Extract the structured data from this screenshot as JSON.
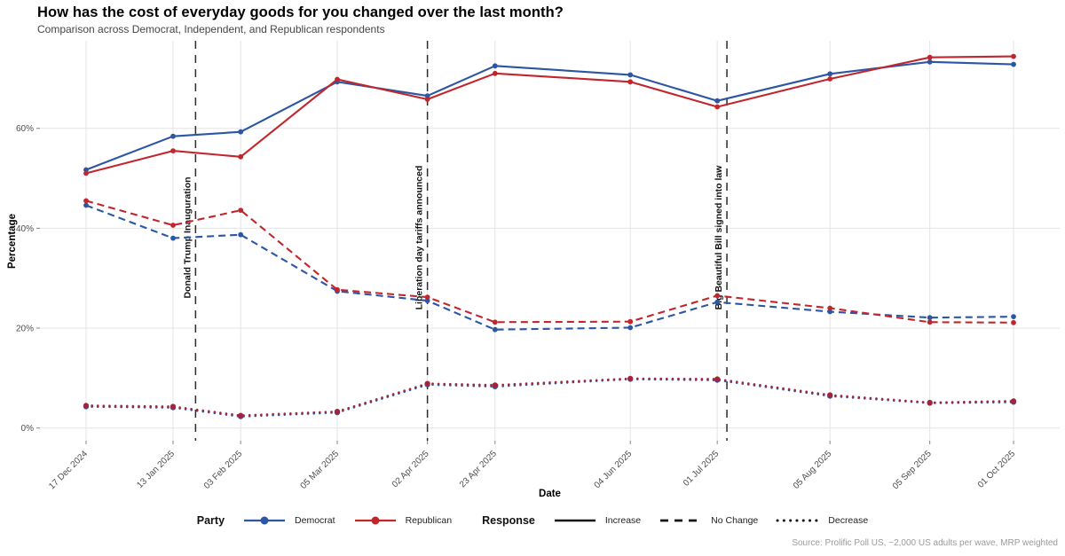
{
  "chart_data": {
    "type": "line",
    "title": "How has the cost of everyday goods for you changed over the last month?",
    "subtitle": "Comparison across Democrat, Independent, and Republican respondents",
    "xlabel": "Date",
    "ylabel": "Percentage",
    "x": [
      "17 Dec 2024",
      "13 Jan 2025",
      "03 Feb 2025",
      "05 Mar 2025",
      "02 Apr 2025",
      "23 Apr 2025",
      "04 Jun 2025",
      "01 Jul 2025",
      "05 Aug 2025",
      "05 Sep 2025",
      "01 Oct 2025"
    ],
    "x_days": [
      0,
      27,
      48,
      78,
      106,
      127,
      169,
      196,
      231,
      262,
      288
    ],
    "x_day_span": 288,
    "y_ticks": [
      0,
      20,
      40,
      60
    ],
    "y_tick_suffix": "%",
    "ylim": [
      0,
      78
    ],
    "grid": true,
    "legend_position": "bottom",
    "series": [
      {
        "name": "Democrat Increase",
        "party": "Democrat",
        "response": "Increase",
        "style": "solid",
        "color_key": "democrat",
        "values": [
          51.7,
          58.4,
          59.3,
          69.3,
          66.5,
          72.5,
          70.7,
          65.5,
          70.9,
          73.3,
          72.8
        ]
      },
      {
        "name": "Republican Increase",
        "party": "Republican",
        "response": "Increase",
        "style": "solid",
        "color_key": "republican",
        "values": [
          51.0,
          55.5,
          54.3,
          69.8,
          65.8,
          71.0,
          69.3,
          64.3,
          69.9,
          74.2,
          74.4
        ]
      },
      {
        "name": "Democrat No Change",
        "party": "Democrat",
        "response": "No Change",
        "style": "dashed",
        "color_key": "democrat",
        "values": [
          44.6,
          38.0,
          38.7,
          27.4,
          25.5,
          19.7,
          20.1,
          25.2,
          23.3,
          22.1,
          22.3
        ]
      },
      {
        "name": "Republican No Change",
        "party": "Republican",
        "response": "No Change",
        "style": "dashed",
        "color_key": "republican",
        "values": [
          45.5,
          40.6,
          43.6,
          27.7,
          26.2,
          21.2,
          21.3,
          26.5,
          24.0,
          21.2,
          21.1
        ]
      },
      {
        "name": "Democrat Decrease",
        "party": "Democrat",
        "response": "Decrease",
        "style": "dotted",
        "color_key": "democrat",
        "values": [
          4.3,
          4.1,
          2.3,
          3.1,
          8.7,
          8.3,
          9.8,
          9.6,
          6.4,
          5.0,
          5.2
        ]
      },
      {
        "name": "Republican Decrease",
        "party": "Republican",
        "response": "Decrease",
        "style": "dotted",
        "color_key": "decrease_red",
        "values": [
          4.5,
          4.3,
          2.5,
          3.3,
          8.9,
          8.6,
          9.9,
          9.8,
          6.6,
          5.1,
          5.4
        ]
      }
    ],
    "annotations": [
      {
        "label": "Donald Trump Inauguration",
        "day": 34
      },
      {
        "label": "Liberation day tariffs announced",
        "day": 106
      },
      {
        "label": "Big Beautiful Bill signed into law",
        "day": 199
      }
    ]
  },
  "legend": {
    "party_title": "Party",
    "response_title": "Response",
    "democrat": "Democrat",
    "republican": "Republican",
    "increase": "Increase",
    "no_change": "No Change",
    "decrease": "Decrease"
  },
  "footer": {
    "source": "Source: Prolific Poll US, ~2,000 US adults per wave, MRP weighted"
  },
  "colors": {
    "democrat": "#2c55a3",
    "republican": "#c1262d",
    "decrease_red": "#a5243c",
    "grid": "#e4e4e4",
    "axis_text": "#4d4d4d",
    "tick": "#858585",
    "annotation": "#2b2b2b",
    "annotation_text": "#111111",
    "legend_key": "#151515",
    "title": "#000000",
    "subtitle": "#454545",
    "source": "#9a9a9a"
  }
}
